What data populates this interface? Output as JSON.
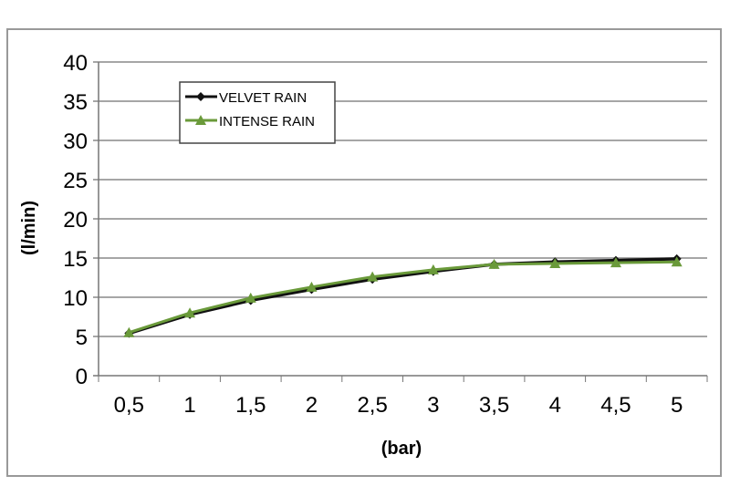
{
  "chart_data": {
    "type": "line",
    "xlabel": "(bar)",
    "ylabel": "(l/min)",
    "categories": [
      "0,5",
      "1",
      "1,5",
      "2",
      "2,5",
      "3",
      "3,5",
      "4",
      "4,5",
      "5"
    ],
    "ylim": [
      0,
      40
    ],
    "yticks": [
      "0",
      "5",
      "10",
      "15",
      "20",
      "25",
      "30",
      "35",
      "40"
    ],
    "grid": true,
    "legend_placement": "top-left",
    "series": [
      {
        "name": "VELVET RAIN",
        "color": "#111111",
        "marker": "diamond",
        "values": [
          5.4,
          7.8,
          9.6,
          11.0,
          12.3,
          13.3,
          14.2,
          14.5,
          14.7,
          14.9
        ]
      },
      {
        "name": "INTENSE RAIN",
        "color": "#6a9a3a",
        "marker": "triangle",
        "values": [
          5.5,
          8.0,
          9.9,
          11.3,
          12.6,
          13.5,
          14.2,
          14.3,
          14.4,
          14.5
        ]
      }
    ]
  }
}
